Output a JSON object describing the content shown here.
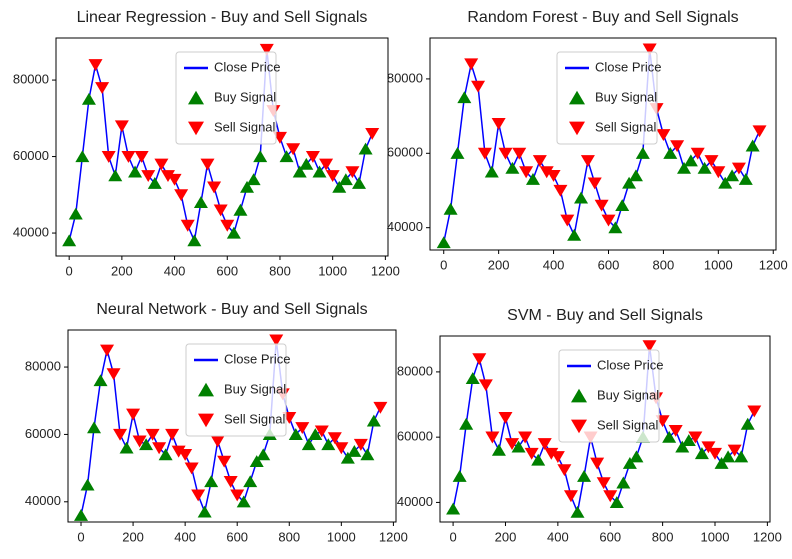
{
  "chart_data": [
    {
      "type": "line",
      "title": "Linear Regression - Buy and Sell Signals",
      "xlim": [
        -50,
        1210
      ],
      "ylim": [
        34000,
        91000
      ],
      "xticks": [
        0,
        200,
        400,
        600,
        800,
        1000,
        1200
      ],
      "yticks": [
        40000,
        60000,
        80000
      ],
      "legend": "upper center",
      "series": [
        {
          "name": "Close Price",
          "color": "#0000ff",
          "marker": "none",
          "x": [
            0,
            25,
            50,
            75,
            100,
            125,
            150,
            175,
            200,
            225,
            250,
            275,
            300,
            325,
            350,
            375,
            400,
            425,
            450,
            475,
            500,
            525,
            550,
            575,
            600,
            625,
            650,
            675,
            700,
            725,
            750,
            775,
            800,
            825,
            850,
            875,
            900,
            925,
            950,
            975,
            1000,
            1025,
            1050,
            1075,
            1100,
            1125,
            1150
          ],
          "values": [
            38000,
            45000,
            60000,
            75000,
            84000,
            78000,
            60000,
            55000,
            68000,
            60000,
            56000,
            60000,
            55000,
            53000,
            58000,
            55000,
            54000,
            50000,
            42000,
            38000,
            48000,
            58000,
            52000,
            46000,
            42000,
            40000,
            46000,
            52000,
            54000,
            60000,
            88000,
            72000,
            65000,
            60000,
            62000,
            56000,
            58000,
            60000,
            56000,
            58000,
            55000,
            52000,
            54000,
            56000,
            53000,
            62000,
            66000
          ]
        },
        {
          "name": "Buy Signal",
          "color": "#008000",
          "marker": "^",
          "x": [
            0,
            25,
            50,
            75,
            175,
            250,
            325,
            475,
            500,
            625,
            650,
            675,
            700,
            725,
            825,
            875,
            900,
            950,
            1025,
            1050,
            1100,
            1125
          ],
          "values": [
            38000,
            45000,
            60000,
            75000,
            55000,
            56000,
            53000,
            38000,
            48000,
            40000,
            46000,
            52000,
            54000,
            60000,
            60000,
            56000,
            58000,
            56000,
            52000,
            54000,
            53000,
            62000
          ]
        },
        {
          "name": "Sell Signal",
          "color": "#ff0000",
          "marker": "v",
          "x": [
            100,
            125,
            150,
            200,
            225,
            275,
            300,
            350,
            375,
            400,
            425,
            450,
            525,
            550,
            575,
            600,
            750,
            775,
            800,
            850,
            925,
            975,
            1000,
            1075,
            1150
          ],
          "values": [
            84000,
            78000,
            60000,
            68000,
            60000,
            60000,
            55000,
            58000,
            55000,
            54000,
            50000,
            42000,
            58000,
            52000,
            46000,
            42000,
            88000,
            72000,
            65000,
            62000,
            60000,
            58000,
            55000,
            56000,
            66000
          ]
        }
      ]
    },
    {
      "type": "line",
      "title": "Random Forest - Buy and Sell Signals",
      "xlim": [
        -50,
        1210
      ],
      "ylim": [
        34000,
        91000
      ],
      "xticks": [
        0,
        200,
        400,
        600,
        800,
        1000,
        1200
      ],
      "yticks": [
        40000,
        60000,
        80000
      ],
      "legend": "upper center",
      "series": [
        {
          "name": "Close Price",
          "color": "#0000ff",
          "marker": "none",
          "x": [
            0,
            25,
            50,
            75,
            100,
            125,
            150,
            175,
            200,
            225,
            250,
            275,
            300,
            325,
            350,
            375,
            400,
            425,
            450,
            475,
            500,
            525,
            550,
            575,
            600,
            625,
            650,
            675,
            700,
            725,
            750,
            775,
            800,
            825,
            850,
            875,
            900,
            925,
            950,
            975,
            1000,
            1025,
            1050,
            1075,
            1100,
            1125,
            1150
          ],
          "values": [
            36000,
            45000,
            60000,
            75000,
            84000,
            78000,
            60000,
            55000,
            68000,
            60000,
            56000,
            60000,
            55000,
            53000,
            58000,
            55000,
            54000,
            50000,
            42000,
            38000,
            48000,
            58000,
            52000,
            46000,
            42000,
            40000,
            46000,
            52000,
            54000,
            60000,
            88000,
            72000,
            65000,
            60000,
            62000,
            56000,
            58000,
            60000,
            56000,
            58000,
            55000,
            52000,
            54000,
            56000,
            53000,
            62000,
            66000
          ]
        },
        {
          "name": "Buy Signal",
          "color": "#008000",
          "marker": "^",
          "x": [
            0,
            25,
            50,
            75,
            175,
            250,
            325,
            475,
            500,
            625,
            650,
            675,
            700,
            725,
            825,
            875,
            900,
            950,
            1025,
            1050,
            1100,
            1125
          ],
          "values": [
            36000,
            45000,
            60000,
            75000,
            55000,
            56000,
            53000,
            38000,
            48000,
            40000,
            46000,
            52000,
            54000,
            60000,
            60000,
            56000,
            58000,
            56000,
            52000,
            54000,
            53000,
            62000
          ]
        },
        {
          "name": "Sell Signal",
          "color": "#ff0000",
          "marker": "v",
          "x": [
            100,
            125,
            150,
            200,
            225,
            275,
            300,
            350,
            375,
            400,
            425,
            450,
            525,
            550,
            575,
            600,
            750,
            775,
            800,
            850,
            925,
            975,
            1000,
            1075,
            1150
          ],
          "values": [
            84000,
            78000,
            60000,
            68000,
            60000,
            60000,
            55000,
            58000,
            55000,
            54000,
            50000,
            42000,
            58000,
            52000,
            46000,
            42000,
            88000,
            72000,
            65000,
            62000,
            60000,
            58000,
            55000,
            56000,
            66000
          ]
        }
      ]
    },
    {
      "type": "line",
      "title": "Neural Network - Buy and Sell Signals",
      "xlim": [
        -50,
        1210
      ],
      "ylim": [
        34000,
        91000
      ],
      "xticks": [
        0,
        200,
        400,
        600,
        800,
        1000,
        1200
      ],
      "yticks": [
        40000,
        60000,
        80000
      ],
      "legend": "upper center",
      "series": [
        {
          "name": "Close Price",
          "color": "#0000ff",
          "marker": "none",
          "x": [
            0,
            25,
            50,
            75,
            100,
            125,
            150,
            175,
            200,
            225,
            250,
            275,
            300,
            325,
            350,
            375,
            400,
            425,
            450,
            475,
            500,
            525,
            550,
            575,
            600,
            625,
            650,
            675,
            700,
            725,
            750,
            775,
            800,
            825,
            850,
            875,
            900,
            925,
            950,
            975,
            1000,
            1025,
            1050,
            1075,
            1100,
            1125,
            1150
          ],
          "values": [
            36000,
            45000,
            62000,
            76000,
            85000,
            78000,
            60000,
            56000,
            66000,
            58000,
            57000,
            60000,
            56000,
            54000,
            60000,
            55000,
            54000,
            50000,
            42000,
            37000,
            46000,
            58000,
            52000,
            46000,
            42000,
            40000,
            46000,
            52000,
            54000,
            60000,
            88000,
            72000,
            65000,
            60000,
            62000,
            57000,
            60000,
            61000,
            57000,
            59000,
            56000,
            53000,
            55000,
            57000,
            54000,
            64000,
            68000
          ]
        },
        {
          "name": "Buy Signal",
          "color": "#008000",
          "marker": "^",
          "x": [
            0,
            25,
            50,
            75,
            175,
            250,
            325,
            475,
            500,
            625,
            650,
            675,
            700,
            725,
            825,
            875,
            900,
            950,
            1025,
            1050,
            1100,
            1125
          ],
          "values": [
            36000,
            45000,
            62000,
            76000,
            56000,
            57000,
            54000,
            37000,
            46000,
            40000,
            46000,
            52000,
            54000,
            60000,
            60000,
            57000,
            60000,
            57000,
            53000,
            55000,
            54000,
            64000
          ]
        },
        {
          "name": "Sell Signal",
          "color": "#ff0000",
          "marker": "v",
          "x": [
            100,
            125,
            150,
            200,
            225,
            275,
            300,
            350,
            375,
            400,
            425,
            450,
            525,
            550,
            575,
            600,
            750,
            775,
            800,
            850,
            925,
            975,
            1000,
            1075,
            1150
          ],
          "values": [
            85000,
            78000,
            60000,
            66000,
            58000,
            60000,
            56000,
            60000,
            55000,
            54000,
            50000,
            42000,
            58000,
            52000,
            46000,
            42000,
            88000,
            72000,
            65000,
            62000,
            61000,
            59000,
            56000,
            57000,
            68000
          ]
        }
      ]
    },
    {
      "type": "line",
      "title": "SVM - Buy and Sell Signals",
      "xlim": [
        -50,
        1210
      ],
      "ylim": [
        34000,
        91000
      ],
      "xticks": [
        0,
        200,
        400,
        600,
        800,
        1000,
        1200
      ],
      "yticks": [
        40000,
        60000,
        80000
      ],
      "legend": "upper center",
      "series": [
        {
          "name": "Close Price",
          "color": "#0000ff",
          "marker": "none",
          "x": [
            0,
            25,
            50,
            75,
            100,
            125,
            150,
            175,
            200,
            225,
            250,
            275,
            300,
            325,
            350,
            375,
            400,
            425,
            450,
            475,
            500,
            525,
            550,
            575,
            600,
            625,
            650,
            675,
            700,
            725,
            750,
            775,
            800,
            825,
            850,
            875,
            900,
            925,
            950,
            975,
            1000,
            1025,
            1050,
            1075,
            1100,
            1125,
            1150
          ],
          "values": [
            38000,
            48000,
            64000,
            78000,
            84000,
            76000,
            60000,
            56000,
            66000,
            58000,
            57000,
            60000,
            55000,
            53000,
            58000,
            55000,
            54000,
            50000,
            42000,
            37000,
            48000,
            60000,
            52000,
            46000,
            42000,
            40000,
            46000,
            52000,
            54000,
            60000,
            88000,
            72000,
            65000,
            60000,
            62000,
            57000,
            59000,
            60000,
            55000,
            57000,
            55000,
            52000,
            54000,
            56000,
            54000,
            64000,
            68000
          ]
        },
        {
          "name": "Buy Signal",
          "color": "#008000",
          "marker": "^",
          "x": [
            0,
            25,
            50,
            75,
            175,
            250,
            325,
            475,
            500,
            625,
            650,
            675,
            700,
            725,
            825,
            875,
            900,
            950,
            1025,
            1050,
            1100,
            1125
          ],
          "values": [
            38000,
            48000,
            64000,
            78000,
            56000,
            57000,
            53000,
            37000,
            48000,
            40000,
            46000,
            52000,
            54000,
            60000,
            60000,
            57000,
            59000,
            55000,
            52000,
            54000,
            54000,
            64000
          ]
        },
        {
          "name": "Sell Signal",
          "color": "#ff0000",
          "marker": "v",
          "x": [
            100,
            125,
            150,
            200,
            225,
            275,
            300,
            350,
            375,
            400,
            425,
            450,
            525,
            550,
            575,
            600,
            750,
            775,
            800,
            850,
            925,
            975,
            1000,
            1075,
            1150
          ],
          "values": [
            84000,
            76000,
            60000,
            66000,
            58000,
            60000,
            55000,
            58000,
            55000,
            54000,
            50000,
            42000,
            60000,
            52000,
            46000,
            42000,
            88000,
            72000,
            65000,
            62000,
            60000,
            57000,
            55000,
            56000,
            68000
          ]
        }
      ]
    }
  ]
}
